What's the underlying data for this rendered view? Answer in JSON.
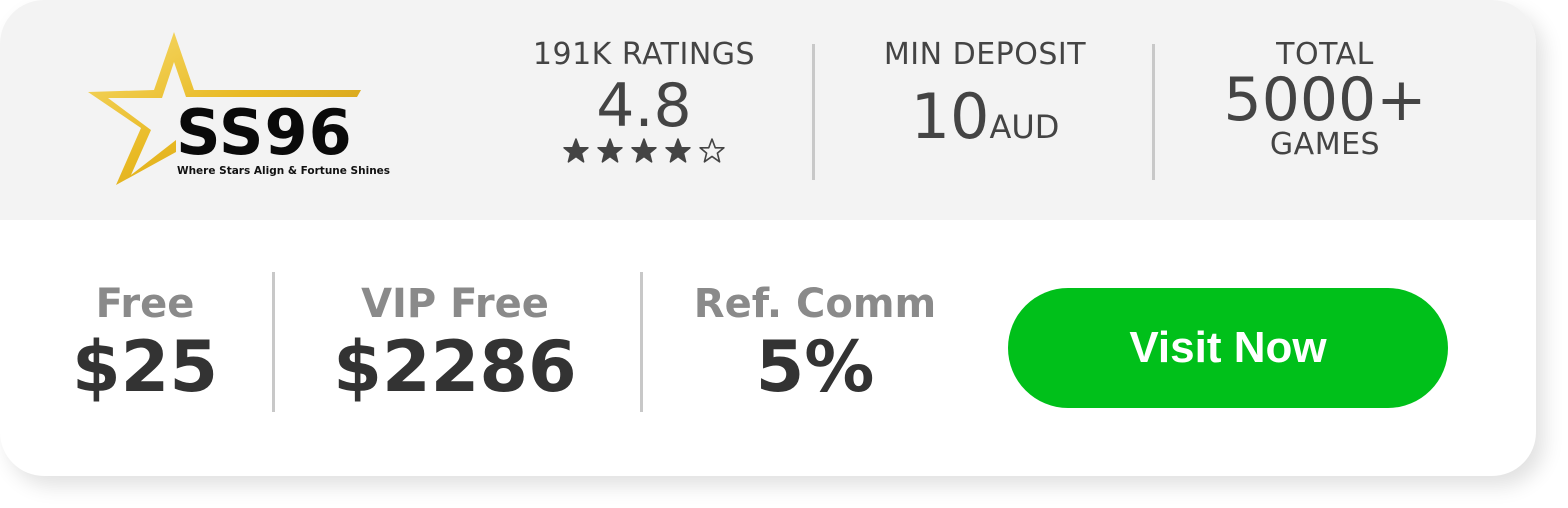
{
  "brand": {
    "name": "SS96",
    "tagline": "Where Stars Align & Fortune Shines"
  },
  "ratings": {
    "label": "191K RATINGS",
    "score": "4.8",
    "stars_filled": 4,
    "stars_total": 5
  },
  "min_deposit": {
    "label": "MIN DEPOSIT",
    "amount": "10",
    "currency": "AUD"
  },
  "total": {
    "label": "TOTAL",
    "count": "5000+",
    "unit": "GAMES"
  },
  "offers": [
    {
      "label": "Free",
      "value": "$25"
    },
    {
      "label": "VIP Free",
      "value": "$2286"
    },
    {
      "label": "Ref. Comm",
      "value": "5%"
    }
  ],
  "cta": {
    "label": "Visit Now"
  },
  "colors": {
    "cta": "#00c01a",
    "panel": "#f3f3f3",
    "gold": "#e8b923"
  }
}
